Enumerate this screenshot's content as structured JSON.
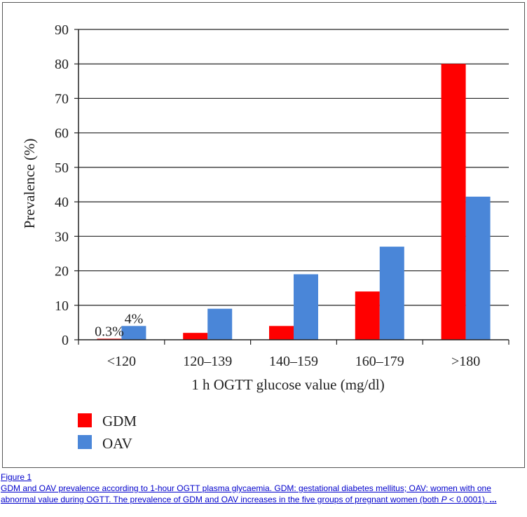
{
  "chart_data": {
    "type": "bar",
    "title": "",
    "xlabel": "1 h OGTT glucose value (mg/dl)",
    "ylabel": "Prevalence (%)",
    "ylim": [
      0,
      90
    ],
    "yticks": [
      0,
      10,
      20,
      30,
      40,
      50,
      60,
      70,
      80,
      90
    ],
    "grid": true,
    "legend_position": "bottom-left",
    "categories": [
      "<120",
      "120–139",
      "140–159",
      "160–179",
      ">180"
    ],
    "series": [
      {
        "name": "GDM",
        "color": "#ff0000",
        "values": [
          0.3,
          2,
          4,
          14,
          80
        ]
      },
      {
        "name": "OAV",
        "color": "#4a86d8",
        "values": [
          4,
          9,
          19,
          27,
          41.5
        ]
      }
    ],
    "annotations": [
      {
        "text": "0.3%",
        "category": 0,
        "series": 0
      },
      {
        "text": "4%",
        "category": 0,
        "series": 1
      }
    ]
  },
  "caption": {
    "figure_label": "Figure 1",
    "text_before_p": "GDM and OAV prevalence according to 1-hour OGTT plasma glycaemia. GDM: gestational diabetes mellitus; OAV: women with one abnormal value during OGTT. The prevalence of GDM and OAV increases in the five groups of pregnant women (both ",
    "p_symbol": "P",
    "text_after_p": " < 0.0001). ",
    "more": "..."
  }
}
